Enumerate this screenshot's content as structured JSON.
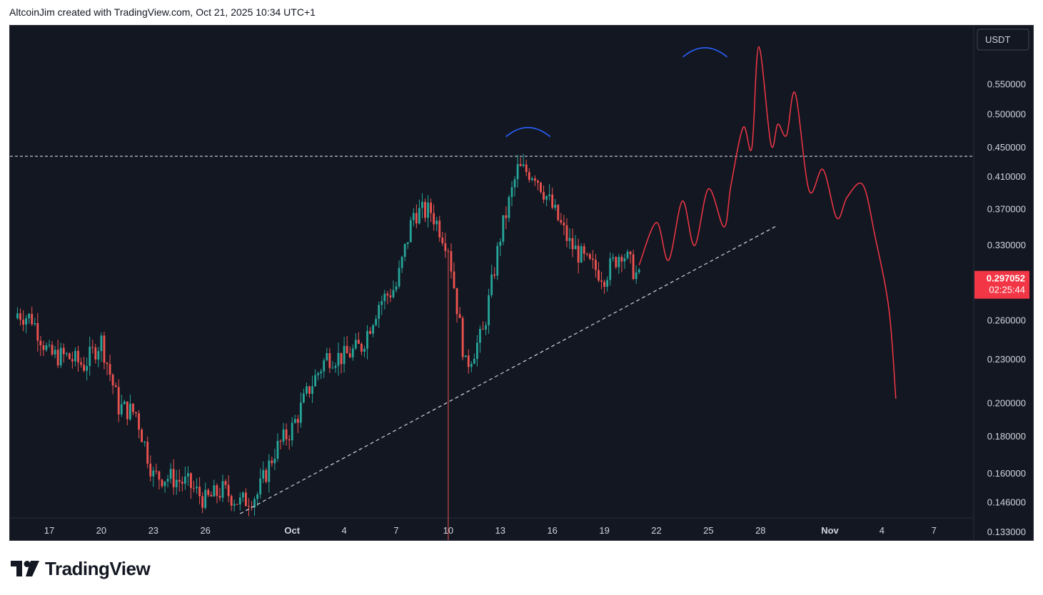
{
  "header": {
    "author": "AltcoinJim",
    "text": "AltcoinJim created with TradingView.com, Oct 21, 2025 10:34 UTC+1"
  },
  "footer": {
    "brand": "TradingView",
    "logo_icon": "tradingview-logo-icon"
  },
  "chart_data": {
    "type": "candlestick",
    "scale": "log",
    "currency_label": "USDT",
    "y_ticks": [
      "0.550000",
      "0.500000",
      "0.450000",
      "0.410000",
      "0.370000",
      "0.330000",
      "0.260000",
      "0.230000",
      "0.200000",
      "0.180000",
      "0.160000",
      "0.146000",
      "0.133000"
    ],
    "x_ticks": [
      "17",
      "20",
      "23",
      "26",
      "Oct",
      "4",
      "7",
      "10",
      "13",
      "16",
      "19",
      "22",
      "25",
      "28",
      "Nov",
      "4",
      "7"
    ],
    "last_price": "0.297052",
    "countdown": "02:25:44",
    "resistance_level": 0.438,
    "support_trendline": {
      "from": {
        "date": "Sep 28",
        "price": 0.141
      },
      "to": {
        "date": "Oct 29",
        "price": 0.352
      }
    },
    "candle_interval": "4h",
    "candles_daily_close": [
      {
        "date": "Sep 16",
        "close": 0.262
      },
      {
        "date": "Sep 17",
        "close": 0.233
      },
      {
        "date": "Sep 18",
        "close": 0.232
      },
      {
        "date": "Sep 19",
        "close": 0.226
      },
      {
        "date": "Sep 20",
        "close": 0.244
      },
      {
        "date": "Sep 21",
        "close": 0.198
      },
      {
        "date": "Sep 22",
        "close": 0.194
      },
      {
        "date": "Sep 23",
        "close": 0.159
      },
      {
        "date": "Sep 24",
        "close": 0.158
      },
      {
        "date": "Sep 25",
        "close": 0.155
      },
      {
        "date": "Sep 26",
        "close": 0.147
      },
      {
        "date": "Sep 27",
        "close": 0.152
      },
      {
        "date": "Sep 28",
        "close": 0.146
      },
      {
        "date": "Sep 29",
        "close": 0.15
      },
      {
        "date": "Sep 30",
        "close": 0.172
      },
      {
        "date": "Oct 1",
        "close": 0.185
      },
      {
        "date": "Oct 2",
        "close": 0.21
      },
      {
        "date": "Oct 3",
        "close": 0.232
      },
      {
        "date": "Oct 4",
        "close": 0.232
      },
      {
        "date": "Oct 5",
        "close": 0.24
      },
      {
        "date": "Oct 6",
        "close": 0.275
      },
      {
        "date": "Oct 7",
        "close": 0.29
      },
      {
        "date": "Oct 8",
        "close": 0.366
      },
      {
        "date": "Oct 9",
        "close": 0.368
      },
      {
        "date": "Oct 10",
        "close": 0.33
      },
      {
        "date": "Oct 11",
        "close": 0.225
      },
      {
        "date": "Oct 12",
        "close": 0.25
      },
      {
        "date": "Oct 13",
        "close": 0.34
      },
      {
        "date": "Oct 14",
        "close": 0.42
      },
      {
        "date": "Oct 15",
        "close": 0.415
      },
      {
        "date": "Oct 16",
        "close": 0.372
      },
      {
        "date": "Oct 17",
        "close": 0.332
      },
      {
        "date": "Oct 18",
        "close": 0.312
      },
      {
        "date": "Oct 19",
        "close": 0.3
      },
      {
        "date": "Oct 20",
        "close": 0.325
      },
      {
        "date": "Oct 21",
        "close": 0.297
      }
    ],
    "projection_path": [
      {
        "date": "Oct 21",
        "price": 0.31
      },
      {
        "date": "Oct 22",
        "price": 0.355
      },
      {
        "date": "Oct 22.7",
        "price": 0.315
      },
      {
        "date": "Oct 23.5",
        "price": 0.38
      },
      {
        "date": "Oct 24.2",
        "price": 0.33
      },
      {
        "date": "Oct 25",
        "price": 0.395
      },
      {
        "date": "Oct 25.9",
        "price": 0.35
      },
      {
        "date": "Oct 26.3",
        "price": 0.4
      },
      {
        "date": "Oct 27",
        "price": 0.48
      },
      {
        "date": "Oct 27.5",
        "price": 0.45
      },
      {
        "date": "Oct 27.9",
        "price": 0.62
      },
      {
        "date": "Oct 28.6",
        "price": 0.455
      },
      {
        "date": "Oct 29",
        "price": 0.485
      },
      {
        "date": "Oct 29.5",
        "price": 0.468
      },
      {
        "date": "Oct 30",
        "price": 0.535
      },
      {
        "date": "Oct 30.8",
        "price": 0.393
      },
      {
        "date": "Oct 31.6",
        "price": 0.42
      },
      {
        "date": "Nov 1.4",
        "price": 0.36
      },
      {
        "date": "Nov 2",
        "price": 0.385
      },
      {
        "date": "Nov 2.9",
        "price": 0.4
      },
      {
        "date": "Nov 3.6",
        "price": 0.34
      },
      {
        "date": "Nov 4.4",
        "price": 0.27
      },
      {
        "date": "Nov 4.8",
        "price": 0.203
      }
    ],
    "colors": {
      "background": "#131722",
      "up": "#26a69a",
      "down": "#ef5350",
      "projection": "#f23645",
      "arc": "#2962ff",
      "guide": "#d1d4dc",
      "text": "#d1d4dc",
      "price_badge": "#f23645"
    },
    "grid": false
  }
}
